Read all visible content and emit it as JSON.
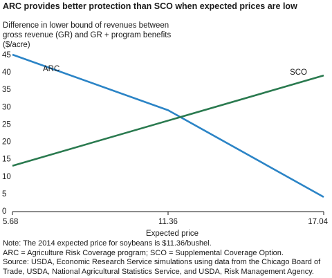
{
  "chart_data": {
    "type": "line",
    "title": "ARC provides better protection than SCO when expected prices are low",
    "ylabel_lines": [
      "Difference in lower bound of revenues between",
      "gross revenue (GR) and GR + program benefits",
      "($/acre)"
    ],
    "xlabel": "Expected price",
    "x_ticks": [
      "5.68",
      "11.36",
      "17.04"
    ],
    "y_ticks": [
      0,
      5,
      10,
      15,
      20,
      25,
      30,
      35,
      40,
      45
    ],
    "ylim": [
      0,
      45
    ],
    "xlim": [
      5.68,
      17.04
    ],
    "series": [
      {
        "name": "ARC",
        "color": "#2b84c6",
        "x": [
          5.68,
          11.36,
          17.04
        ],
        "y": [
          45,
          29,
          4
        ]
      },
      {
        "name": "SCO",
        "color": "#2a7a4f",
        "x": [
          5.68,
          17.04
        ],
        "y": [
          13,
          39
        ]
      }
    ],
    "notes": [
      "Note: The 2014 expected price for soybeans is $11.36/bushel.",
      "ARC = Agriculture Risk Coverage program; SCO = Supplemental Coverage Option.",
      "Source: USDA, Economic Research Service simulations using data from the Chicago Board of Trade, USDA, National Agricultural Statistics Service, and USDA, Risk Management Agency."
    ]
  }
}
